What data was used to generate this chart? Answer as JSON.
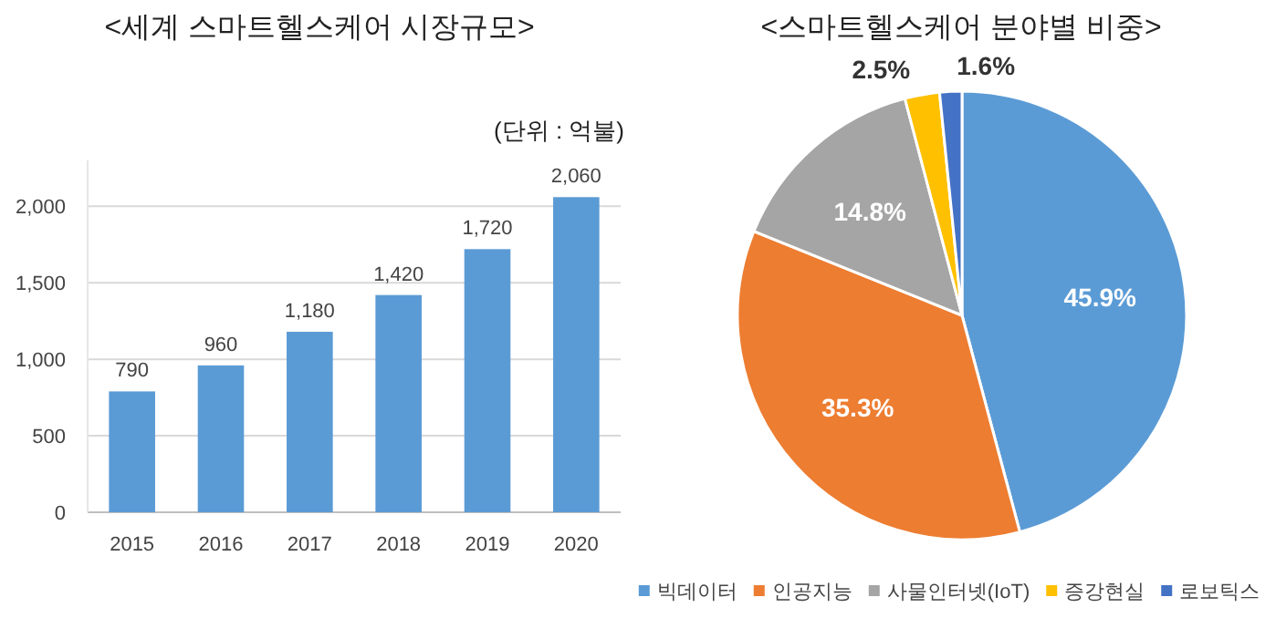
{
  "chart_data": [
    {
      "type": "bar",
      "title": "<세계 스마트헬스케어 시장규모>",
      "annotations": [
        "(단위 : 억불)"
      ],
      "categories": [
        "2015",
        "2016",
        "2017",
        "2018",
        "2019",
        "2020"
      ],
      "values": [
        790,
        960,
        1180,
        1420,
        1720,
        2060
      ],
      "value_labels": [
        "790",
        "960",
        "1,180",
        "1,420",
        "1,720",
        "2,060"
      ],
      "color": "#5b9bd5",
      "ylim": [
        0,
        2300
      ],
      "yticks": [
        0,
        500,
        {
          "value": 1000,
          "label": "1,000"
        },
        {
          "value": 1500,
          "label": "1,500"
        },
        {
          "value": 2000,
          "label": "2,000"
        }
      ],
      "grid": "y"
    },
    {
      "type": "pie",
      "title": "<스마트헬스케어 분야별 비중>",
      "categories": [
        "빅데이터",
        "인공지능",
        "사물인터넷(IoT)",
        "증강현실",
        "로보틱스"
      ],
      "values": [
        45.9,
        35.3,
        14.8,
        2.5,
        1.6
      ],
      "value_labels": [
        "45.9%",
        "35.3%",
        "14.8%",
        "2.5%",
        "1.6%"
      ],
      "colors": [
        "#5b9bd5",
        "#ed7d31",
        "#a5a5a5",
        "#ffc000",
        "#4472c4"
      ],
      "legend": "bottom"
    }
  ]
}
